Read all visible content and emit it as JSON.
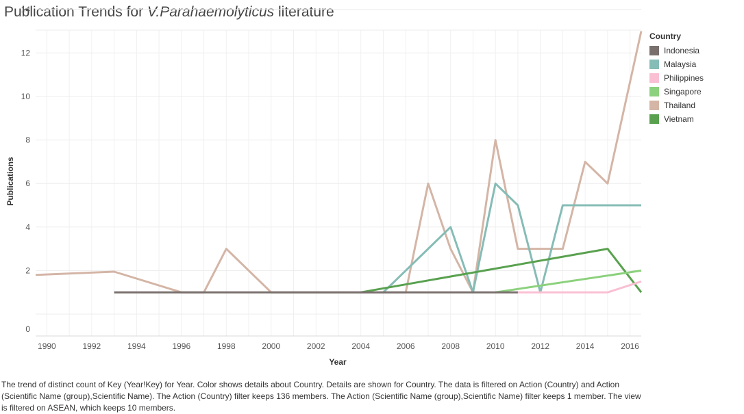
{
  "title": {
    "prefix": "Publication Trends for ",
    "italic": "V.Parahaemolyticus",
    "suffix": " literature"
  },
  "caption": "The trend of distinct count of Key (Year!Key) for Year.  Color shows details about Country.  Details are shown for Country. The data is filtered on Action (Country) and Action (Scientific Name (group),Scientific Name). The Action (Country) filter keeps 136 members. The Action (Scientific Name (group),Scientific Name) filter keeps 1 member. The view is filtered on ASEAN, which keeps 10 members.",
  "chart_data": {
    "type": "line",
    "xlabel": "Year",
    "ylabel": "Publications",
    "xlim": [
      1989.5,
      2016.5
    ],
    "ylim": [
      0,
      14
    ],
    "x_ticks": [
      1990,
      1992,
      1994,
      1996,
      1998,
      2000,
      2002,
      2004,
      2006,
      2008,
      2010,
      2012,
      2014,
      2016
    ],
    "y_ticks": [
      0,
      2,
      4,
      6,
      8,
      10,
      12,
      14
    ],
    "grid": true,
    "legend_title": "Country",
    "legend_position": "right",
    "series": [
      {
        "name": "Thailand",
        "color": "#d4b5a6",
        "points": [
          [
            1989.5,
            1.8
          ],
          [
            1993,
            1.95
          ],
          [
            1996,
            1
          ],
          [
            1997,
            1
          ],
          [
            1998,
            3
          ],
          [
            2000,
            1
          ],
          [
            2001,
            1
          ],
          [
            2002,
            1
          ],
          [
            2003,
            1
          ],
          [
            2004,
            1
          ],
          [
            2005,
            1
          ],
          [
            2006,
            1
          ],
          [
            2007,
            6
          ],
          [
            2008,
            3
          ],
          [
            2009,
            1
          ],
          [
            2010,
            8
          ],
          [
            2011,
            3
          ],
          [
            2012,
            3
          ],
          [
            2013,
            3
          ],
          [
            2014,
            7
          ],
          [
            2015,
            6
          ],
          [
            2016.5,
            13
          ]
        ]
      },
      {
        "name": "Malaysia",
        "color": "#86bcb6",
        "points": [
          [
            2005,
            1
          ],
          [
            2008,
            4
          ],
          [
            2009,
            1
          ],
          [
            2010,
            6
          ],
          [
            2011,
            5
          ],
          [
            2012,
            1
          ],
          [
            2013,
            5
          ],
          [
            2014,
            5
          ],
          [
            2015,
            5
          ],
          [
            2016.5,
            5
          ]
        ]
      },
      {
        "name": "Vietnam",
        "color": "#59a14f",
        "points": [
          [
            2004,
            1
          ],
          [
            2015,
            3
          ],
          [
            2016.5,
            1
          ]
        ]
      },
      {
        "name": "Singapore",
        "color": "#8cd17d",
        "points": [
          [
            2010,
            1
          ],
          [
            2016.5,
            2
          ]
        ]
      },
      {
        "name": "Philippines",
        "color": "#fabfd2",
        "points": [
          [
            2011,
            1
          ],
          [
            2015,
            1
          ],
          [
            2016.5,
            1.5
          ]
        ]
      },
      {
        "name": "Indonesia",
        "color": "#79706e",
        "points": [
          [
            1993,
            1
          ],
          [
            2011,
            1
          ]
        ]
      }
    ],
    "legend_order": [
      "Indonesia",
      "Malaysia",
      "Philippines",
      "Singapore",
      "Thailand",
      "Vietnam"
    ]
  }
}
